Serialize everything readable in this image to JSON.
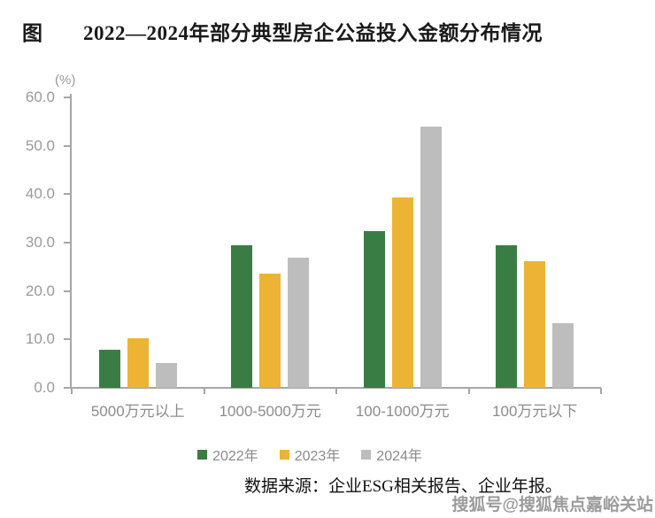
{
  "header": {
    "figure_label": "图",
    "title": "2022—2024年部分典型房企公益投入金额分布情况"
  },
  "chart_data": {
    "type": "bar",
    "title": "2022—2024年部分典型房企公益投入金额分布情况",
    "ylabel": "(%)",
    "xlabel": "",
    "ylim": [
      0,
      60
    ],
    "y_ticks": [
      0,
      10,
      20,
      30,
      40,
      50,
      60
    ],
    "y_tick_labels": [
      "0.0",
      "10.0",
      "20.0",
      "30.0",
      "40.0",
      "50.0",
      "60.0"
    ],
    "grid": false,
    "legend_position": "bottom",
    "categories": [
      "5000万元以上",
      "1000-5000万元",
      "100-1000万元",
      "100万元以下"
    ],
    "series": [
      {
        "name": "2022年",
        "color": "#3a7d44",
        "values": [
          7.9,
          29.5,
          32.4,
          29.5
        ]
      },
      {
        "name": "2023年",
        "color": "#ecb335",
        "values": [
          10.2,
          23.6,
          39.4,
          26.2
        ]
      },
      {
        "name": "2024年",
        "color": "#bdbdbd",
        "values": [
          5.2,
          26.9,
          54.0,
          13.3
        ]
      }
    ],
    "axis_color": "#a6a6a6",
    "label_color": "#8c8c8c"
  },
  "footer": {
    "source_note": "数据来源：企业ESG相关报告、企业年报。",
    "watermark": "搜狐号@搜狐焦点嘉峪关站"
  }
}
